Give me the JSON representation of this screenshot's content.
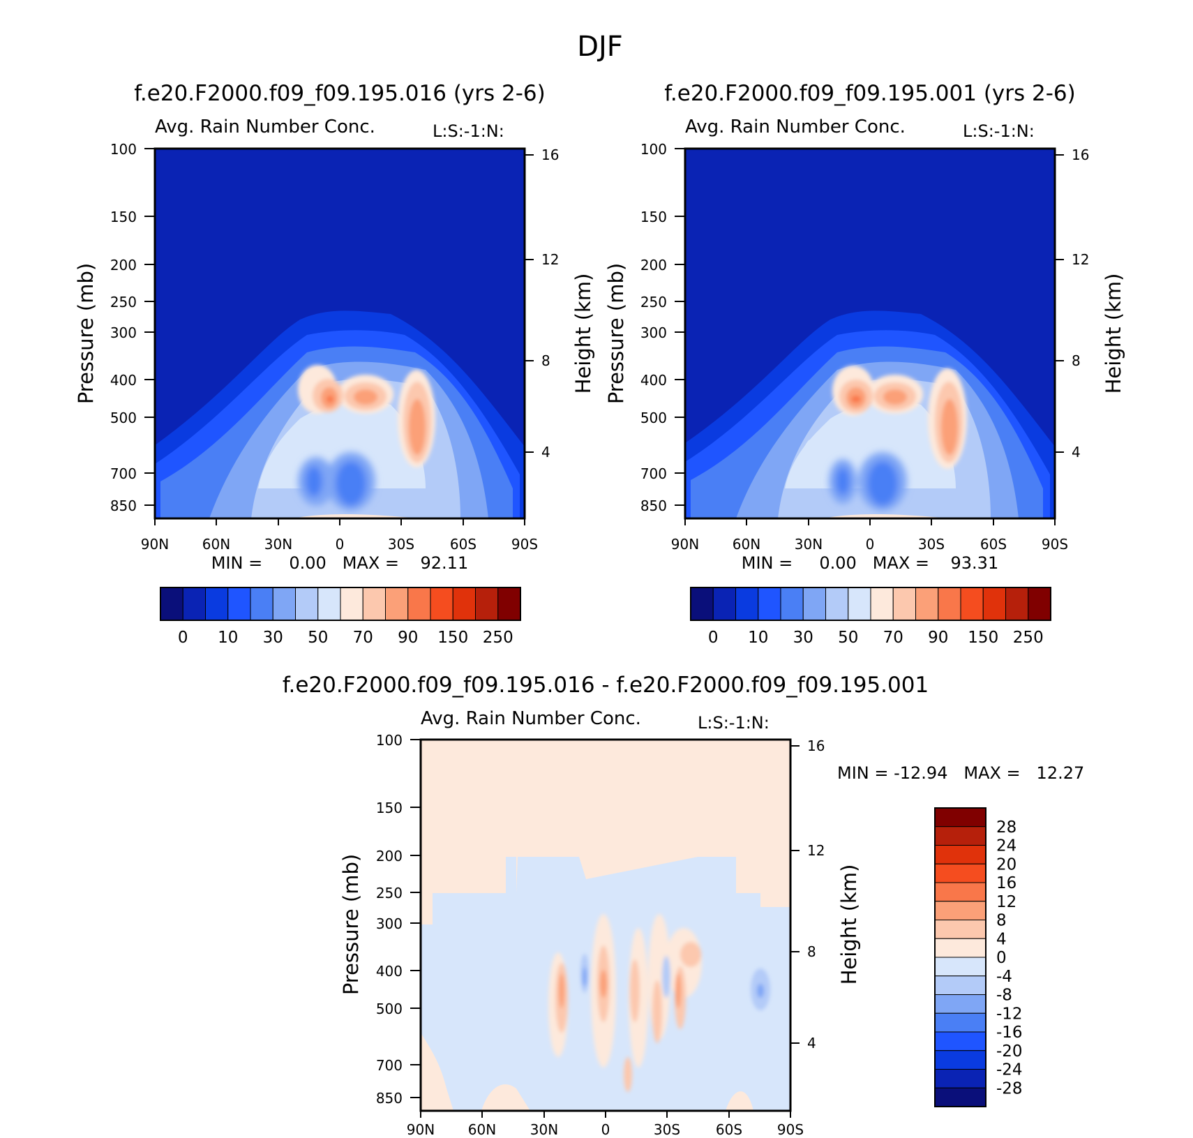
{
  "page": {
    "title": "DJF"
  },
  "panels": [
    {
      "id": "top-left",
      "case_title": "f.e20.F2000.f09_f09.195.016 (yrs 2-6)",
      "field_label": "Avg. Rain Number Conc.",
      "level_label": "L:S:-1:N:",
      "y_left_label": "Pressure (mb)",
      "y_right_label": "Height (km)",
      "stats_text": "MIN =     0.00   MAX =    92.11"
    },
    {
      "id": "top-right",
      "case_title": "f.e20.F2000.f09_f09.195.001 (yrs 2-6)",
      "field_label": "Avg. Rain Number Conc.",
      "level_label": "L:S:-1:N:",
      "y_left_label": "Pressure (mb)",
      "y_right_label": "Height (km)",
      "stats_text": "MIN =     0.00   MAX =    93.31"
    },
    {
      "id": "bottom-diff",
      "case_title": "f.e20.F2000.f09_f09.195.016 - f.e20.F2000.f09_f09.195.001",
      "field_label": "Avg. Rain Number Conc.",
      "level_label": "L:S:-1:N:",
      "y_left_label": "Pressure (mb)",
      "y_right_label": "Height (km)",
      "stats_text": "MIN = -12.94   MAX =   12.27"
    }
  ],
  "colorbars": {
    "absolute": {
      "colors": [
        "#0a0f7a",
        "#0a23b4",
        "#0a3be0",
        "#1f55ff",
        "#4a7ff5",
        "#7fa6f5",
        "#b3cbf8",
        "#d7e6fb",
        "#fde9dc",
        "#fcc8ae",
        "#fba078",
        "#f9774a",
        "#f54d1f",
        "#e0320b",
        "#b6200b",
        "#800000"
      ],
      "labels": [
        "0",
        "10",
        "30",
        "50",
        "70",
        "90",
        "150",
        "250"
      ]
    },
    "difference": {
      "colors": [
        "#800000",
        "#b6200b",
        "#e0320b",
        "#f54d1f",
        "#f9774a",
        "#fba078",
        "#fcc8ae",
        "#fde9dc",
        "#d7e6fb",
        "#b3cbf8",
        "#7fa6f5",
        "#4a7ff5",
        "#1f55ff",
        "#0a3be0",
        "#0a23b4",
        "#0a0f7a"
      ],
      "labels": [
        "28",
        "24",
        "20",
        "16",
        "12",
        "8",
        "4",
        "0",
        "-4",
        "-8",
        "-12",
        "-16",
        "-20",
        "-24",
        "-28"
      ]
    }
  },
  "chart_data": [
    {
      "type": "heatmap",
      "title": "f.e20.F2000.f09_f09.195.016 (yrs 2-6)",
      "subtitle": "Avg. Rain Number Conc.",
      "xlabel": "",
      "ylabel": "Pressure (mb)",
      "ylabel_right": "Height (km)",
      "x_ticks": [
        "90N",
        "60N",
        "30N",
        "0",
        "30S",
        "60S",
        "90S"
      ],
      "y_ticks": [
        100,
        150,
        200,
        250,
        300,
        400,
        500,
        700,
        850
      ],
      "y_right_ticks": [
        16,
        12,
        8,
        4
      ],
      "y_scale": "log",
      "ylim": [
        100,
        1000
      ],
      "xlim": [
        90,
        -90
      ],
      "levels": [
        0,
        10,
        30,
        50,
        70,
        90,
        150,
        250
      ],
      "min": 0.0,
      "max": 92.11,
      "features": [
        {
          "lat": 5,
          "p": 440,
          "value": 80
        },
        {
          "lat": -10,
          "p": 440,
          "value": 80
        },
        {
          "lat": -37,
          "p": 520,
          "value": 85
        },
        {
          "lat": 10,
          "p": 660,
          "value": 10
        },
        {
          "lat": -5,
          "p": 690,
          "value": 10
        }
      ]
    },
    {
      "type": "heatmap",
      "title": "f.e20.F2000.f09_f09.195.001 (yrs 2-6)",
      "subtitle": "Avg. Rain Number Conc.",
      "xlabel": "",
      "ylabel": "Pressure (mb)",
      "ylabel_right": "Height (km)",
      "x_ticks": [
        "90N",
        "60N",
        "30N",
        "0",
        "30S",
        "60S",
        "90S"
      ],
      "y_ticks": [
        100,
        150,
        200,
        250,
        300,
        400,
        500,
        700,
        850
      ],
      "y_right_ticks": [
        16,
        12,
        8,
        4
      ],
      "y_scale": "log",
      "ylim": [
        100,
        1000
      ],
      "xlim": [
        90,
        -90
      ],
      "levels": [
        0,
        10,
        30,
        50,
        70,
        90,
        150,
        250
      ],
      "min": 0.0,
      "max": 93.31,
      "features": [
        {
          "lat": 7,
          "p": 440,
          "value": 82
        },
        {
          "lat": -10,
          "p": 440,
          "value": 80
        },
        {
          "lat": -38,
          "p": 520,
          "value": 85
        },
        {
          "lat": 13,
          "p": 660,
          "value": 10
        },
        {
          "lat": -6,
          "p": 690,
          "value": 10
        }
      ]
    },
    {
      "type": "heatmap",
      "title": "f.e20.F2000.f09_f09.195.016 - f.e20.F2000.f09_f09.195.001",
      "subtitle": "Avg. Rain Number Conc.",
      "xlabel": "",
      "ylabel": "Pressure (mb)",
      "ylabel_right": "Height (km)",
      "x_ticks": [
        "90N",
        "60N",
        "30N",
        "0",
        "30S",
        "60S",
        "90S"
      ],
      "y_ticks": [
        100,
        150,
        200,
        250,
        300,
        400,
        500,
        700,
        850
      ],
      "y_right_ticks": [
        16,
        12,
        8,
        4
      ],
      "y_scale": "log",
      "ylim": [
        100,
        1000
      ],
      "xlim": [
        90,
        -90
      ],
      "levels": [
        -28,
        -24,
        -20,
        -16,
        -12,
        -8,
        -4,
        0,
        4,
        8,
        12,
        16,
        20,
        24,
        28
      ],
      "min": -12.94,
      "max": 12.27
    }
  ]
}
